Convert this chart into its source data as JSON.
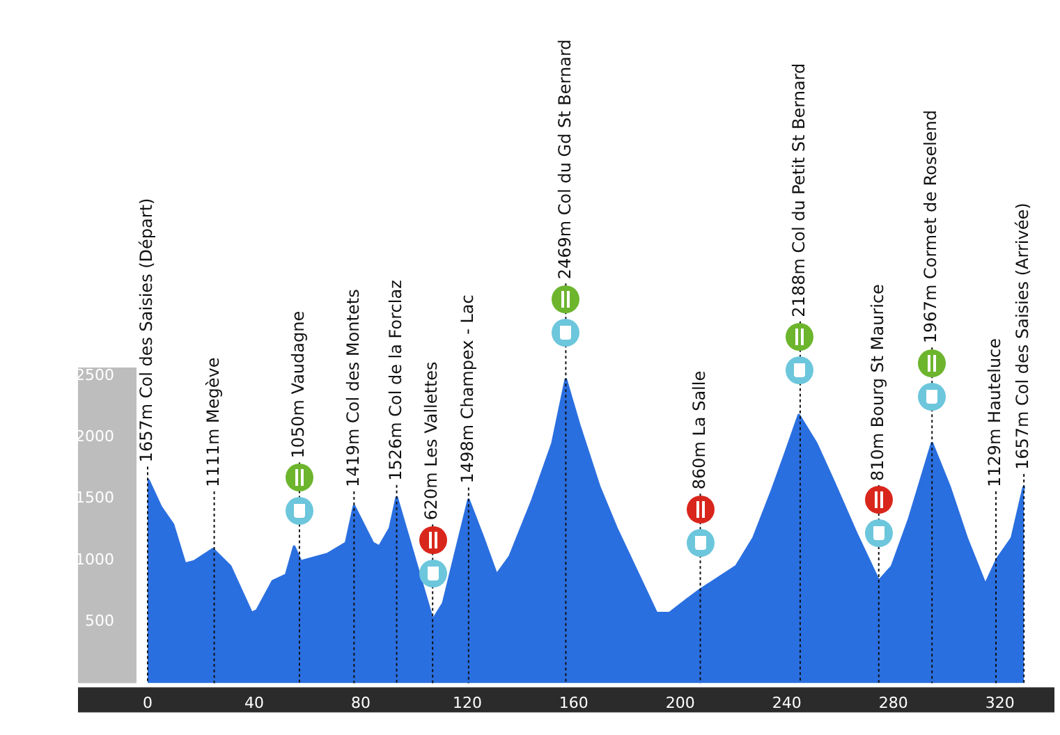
{
  "chart_data": {
    "type": "area",
    "x": [
      0,
      0.5,
      5,
      9.5,
      14,
      17.5,
      24.5,
      31,
      35,
      39,
      41,
      47,
      52,
      55,
      57.5,
      67.5,
      74.5,
      77.5,
      84.5,
      87,
      91,
      93.5,
      107,
      111,
      120.5,
      126,
      131,
      136,
      144.5,
      152,
      157,
      162,
      169.5,
      176,
      181,
      191,
      196,
      202.5,
      207.5,
      216,
      221,
      227.5,
      234.5,
      239.5,
      244.5,
      251,
      257.5,
      266,
      274.5,
      279.5,
      286,
      294.5,
      301,
      307.5,
      314.5,
      319,
      324.5,
      329
    ],
    "series": [
      {
        "color": "#2a6fe0",
        "values": [
          1660,
          1640,
          1430,
          1290,
          970,
          990,
          1090,
          950,
          760,
          570,
          590,
          830,
          880,
          1110,
          990,
          1050,
          1140,
          1440,
          1140,
          1110,
          1260,
          1510,
          510,
          650,
          1490,
          1180,
          880,
          1030,
          1490,
          1950,
          2470,
          2100,
          1600,
          1260,
          1030,
          570,
          570,
          680,
          760,
          880,
          950,
          1180,
          1570,
          1870,
          2180,
          1950,
          1640,
          1220,
          830,
          950,
          1340,
          1950,
          1600,
          1180,
          800,
          1010,
          1180,
          1600
        ]
      }
    ],
    "xlim": [
      0,
      330
    ],
    "xticks": [
      0,
      40,
      80,
      120,
      160,
      200,
      240,
      280,
      320
    ],
    "ylim": [
      0,
      2500
    ],
    "yticks": [
      500,
      1000,
      1500,
      2000,
      2500
    ],
    "grid": false,
    "legend": false,
    "ref_lines": [
      {
        "axis": "x",
        "value": 0,
        "label": "1657m Col des Saisies (Départ)",
        "line_style": "dotted",
        "color": "#111111"
      },
      {
        "axis": "x",
        "value": 25,
        "label": "1111m Megève",
        "line_style": "dotted",
        "color": "#111111"
      },
      {
        "axis": "x",
        "value": 57,
        "label": "1050m Vaudagne",
        "line_style": "dotted",
        "color": "#111111"
      },
      {
        "axis": "x",
        "value": 77.5,
        "label": "1419m Col des Montets",
        "line_style": "dotted",
        "color": "#111111"
      },
      {
        "axis": "x",
        "value": 93.5,
        "label": "1526m Col de la Forclaz",
        "line_style": "dotted",
        "color": "#111111"
      },
      {
        "axis": "x",
        "value": 107,
        "label": "620m Les Vallettes",
        "line_style": "dotted",
        "color": "#111111"
      },
      {
        "axis": "x",
        "value": 120.5,
        "label": "1498m Champex - Lac",
        "line_style": "dotted",
        "color": "#111111"
      },
      {
        "axis": "x",
        "value": 157,
        "label": "2469m Col du Gd St Bernard",
        "line_style": "dotted",
        "color": "#111111"
      },
      {
        "axis": "x",
        "value": 207.5,
        "label": "860m La Salle",
        "line_style": "dotted",
        "color": "#111111"
      },
      {
        "axis": "x",
        "value": 245,
        "label": "2188m Col du Petit St Bernard",
        "line_style": "dotted",
        "color": "#111111"
      },
      {
        "axis": "x",
        "value": 274.5,
        "label": "810m Bourg St Maurice",
        "line_style": "dotted",
        "color": "#111111"
      },
      {
        "axis": "x",
        "value": 294.5,
        "label": "1967m Cormet de Roselend",
        "line_style": "dotted",
        "color": "#111111"
      },
      {
        "axis": "x",
        "value": 318.5,
        "label": "1129m Hauteluce",
        "line_style": "dotted",
        "color": "#111111"
      },
      {
        "axis": "x",
        "value": 329,
        "label": "1657m Col des Saisies (Arrivée)",
        "line_style": "dotted",
        "color": "#111111"
      }
    ]
  }
}
